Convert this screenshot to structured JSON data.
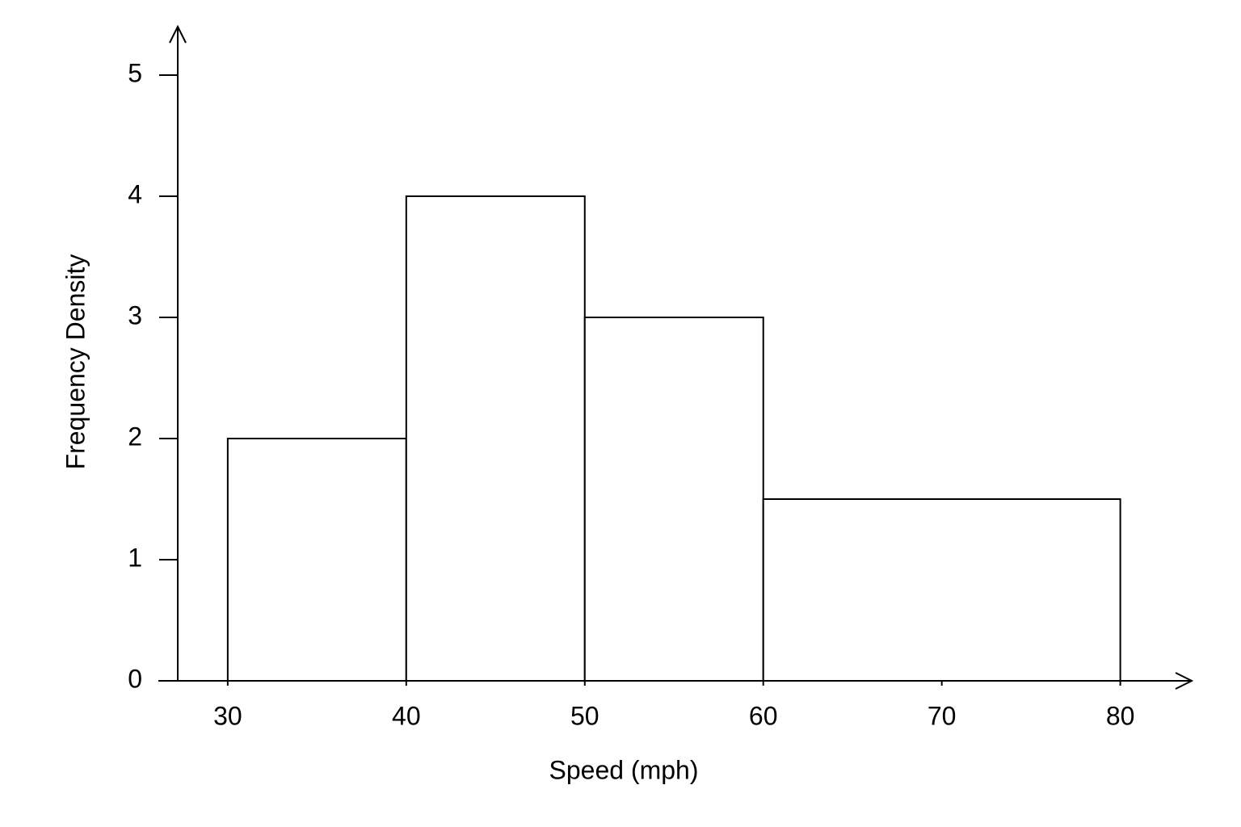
{
  "chart_data": {
    "type": "histogram",
    "xlabel": "Speed (mph)",
    "ylabel": "Frequency Density",
    "bins": [
      30,
      40,
      50,
      60,
      80
    ],
    "values": [
      2,
      4,
      3,
      1.5
    ],
    "color": "#ffffff",
    "edgecolor": "#000000",
    "xlim": [
      27.2,
      84
    ],
    "xticks": [
      30,
      40,
      50,
      60,
      70,
      80
    ],
    "ylim": [
      0,
      5.4
    ],
    "yticks": [
      0,
      1,
      2,
      3,
      4,
      5
    ]
  }
}
